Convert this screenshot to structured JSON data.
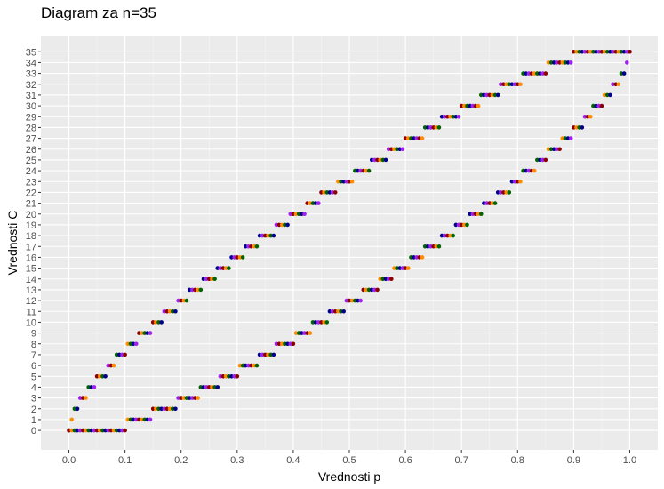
{
  "chart_data": {
    "type": "scatter",
    "title": "Diagram za n=35",
    "xlabel": "Vrednosti p",
    "ylabel": "Vrednosti C",
    "n": 35,
    "xlim": [
      -0.05,
      1.05
    ],
    "ylim": [
      -1.8,
      36.5
    ],
    "x_ticks": [
      "0.0",
      "0.1",
      "0.2",
      "0.3",
      "0.4",
      "0.5",
      "0.6",
      "0.7",
      "0.8",
      "0.9",
      "1.0"
    ],
    "y_ticks": [
      "0",
      "1",
      "2",
      "3",
      "4",
      "5",
      "6",
      "7",
      "8",
      "9",
      "10",
      "11",
      "12",
      "13",
      "14",
      "15",
      "16",
      "17",
      "18",
      "19",
      "20",
      "21",
      "22",
      "23",
      "24",
      "25",
      "26",
      "27",
      "28",
      "29",
      "30",
      "31",
      "32",
      "33",
      "34",
      "35"
    ],
    "grid": true,
    "panel_background": "#ebebeb",
    "p_step": 0.005,
    "point_colors": [
      "#8b0000",
      "#ff8c00",
      "#006400",
      "#00008b",
      "#a020f0"
    ],
    "series": [
      {
        "name": "",
        "description": "lower bound of C for each p",
        "values": "C_low(p)"
      },
      {
        "name": "",
        "description": "upper bound of C for each p",
        "values": "C_high(p)"
      }
    ]
  }
}
